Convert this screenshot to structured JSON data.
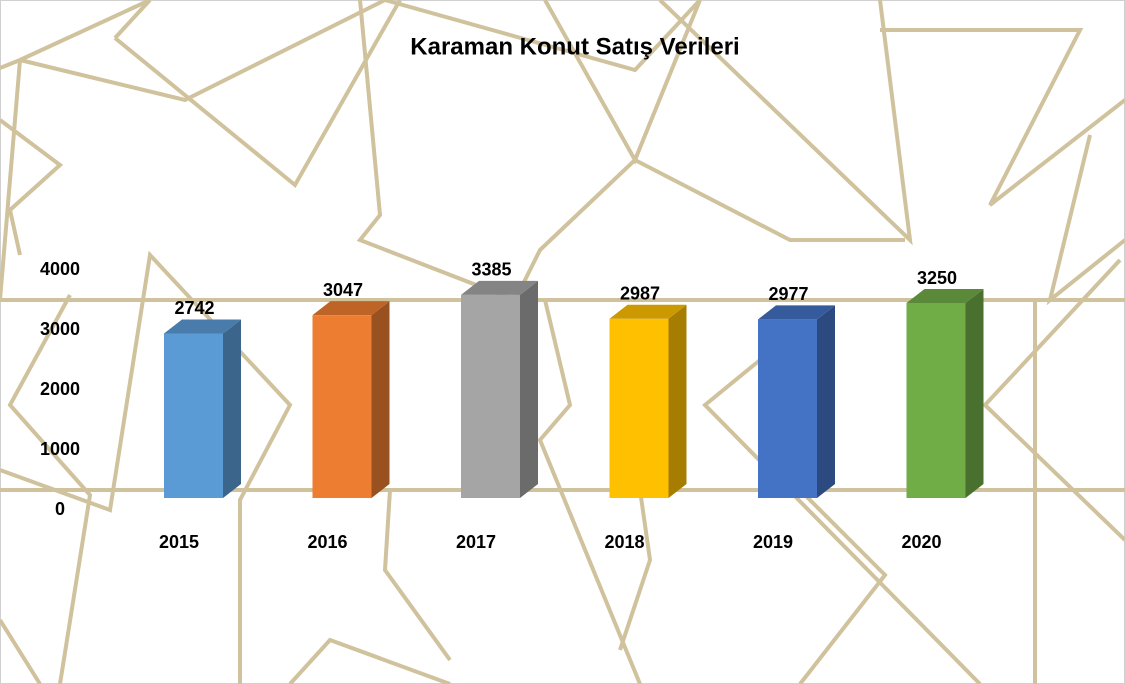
{
  "chart_data": {
    "type": "bar3d",
    "title": "Karaman Konut Satış Verileri",
    "categories": [
      "2015",
      "2016",
      "2017",
      "2018",
      "2019",
      "2020"
    ],
    "values": [
      2742,
      3047,
      3385,
      2987,
      2977,
      3250
    ],
    "colors": [
      "#5b9bd5",
      "#ed7d31",
      "#a5a5a5",
      "#ffc000",
      "#4472c4",
      "#70ad47"
    ],
    "ylim": [
      0,
      4000
    ],
    "yticks": [
      0,
      1000,
      2000,
      3000,
      4000
    ],
    "grid": false
  }
}
